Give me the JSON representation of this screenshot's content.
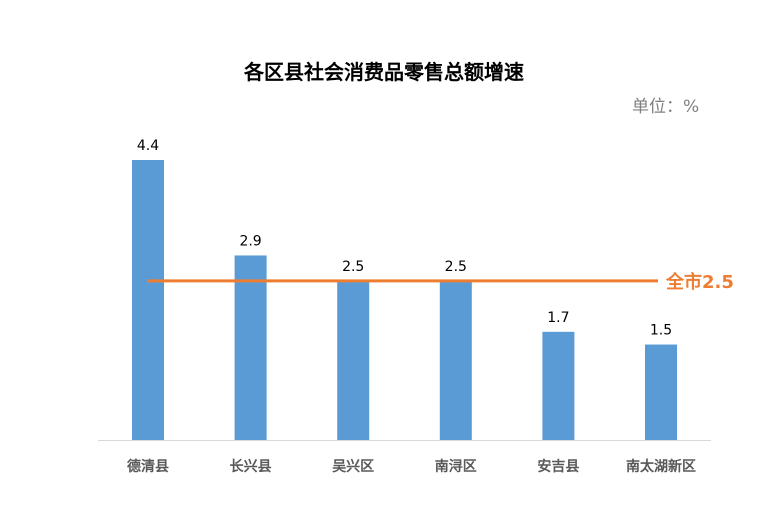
{
  "chart_data": {
    "type": "bar",
    "title": "各区县社会消费品零售总额增速",
    "unit_label": "单位：%",
    "categories": [
      "德清县",
      "长兴县",
      "吴兴区",
      "南浔区",
      "安吉县",
      "南太湖新区"
    ],
    "values": [
      4.4,
      2.9,
      2.5,
      2.5,
      1.7,
      1.5
    ],
    "value_labels": [
      "4.4",
      "2.9",
      "2.5",
      "2.5",
      "1.7",
      "1.5"
    ],
    "ylim": [
      0,
      4.4
    ],
    "grid": false,
    "legend": "none",
    "reference_line": {
      "label": "全市2.5",
      "value": 2.5
    },
    "colors": {
      "bar": "#5b9bd5",
      "reference_line": "#ed7d31",
      "axis": "#d9d9d9",
      "category_text": "#595959"
    }
  }
}
